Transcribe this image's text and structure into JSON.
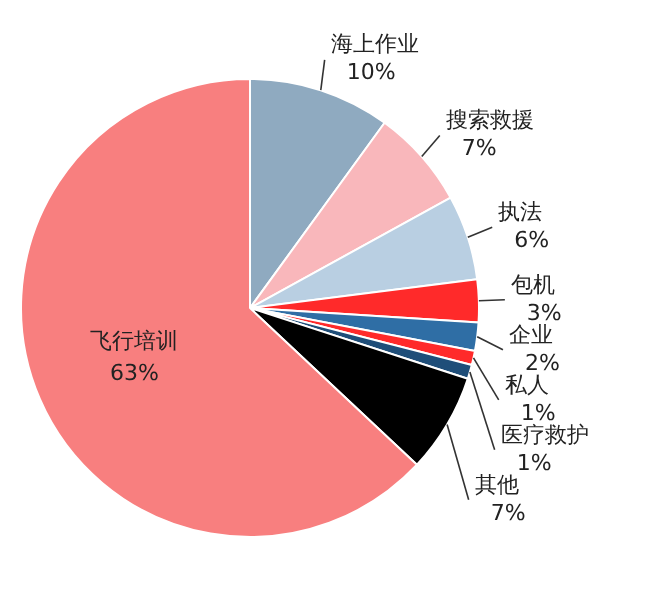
{
  "chart_data": {
    "type": "pie",
    "categories": [
      "海上作业",
      "搜索救援",
      "执法",
      "包机",
      "企业",
      "私人",
      "医疗救护",
      "其他",
      "飞行培训"
    ],
    "values": [
      10,
      7,
      6,
      3,
      2,
      1,
      1,
      7,
      63
    ],
    "value_labels": [
      "10%",
      "7%",
      "6%",
      "3%",
      "2%",
      "1%",
      "1%",
      "7%",
      "63%"
    ],
    "colors": [
      "#8faac0",
      "#f9b7bb",
      "#b9cfe2",
      "#ff2a2a",
      "#2f6ea5",
      "#ff2a2a",
      "#1f4e79",
      "#000000",
      "#f87f7f"
    ],
    "legend": false
  }
}
